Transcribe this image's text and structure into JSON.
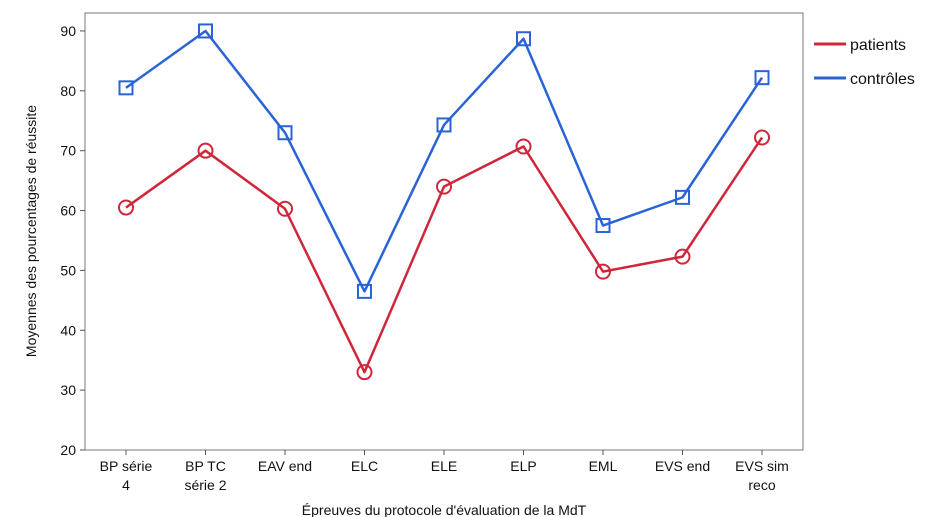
{
  "chart_data": {
    "type": "line",
    "categories": [
      [
        "BP série",
        "4"
      ],
      [
        "BP TC",
        "série 2"
      ],
      [
        "EAV end"
      ],
      [
        "ELC"
      ],
      [
        "ELE"
      ],
      [
        "ELP"
      ],
      [
        "EML"
      ],
      [
        "EVS end"
      ],
      [
        "EVS sim",
        "reco"
      ]
    ],
    "series": [
      {
        "name": "patients",
        "color": "#d0263a",
        "marker": "circle",
        "values": [
          60.5,
          70.0,
          60.3,
          33.0,
          64.0,
          70.7,
          49.8,
          52.3,
          72.2
        ]
      },
      {
        "name": "contrôles",
        "color": "#2a63d6",
        "marker": "square",
        "values": [
          80.5,
          90.0,
          73.0,
          46.5,
          74.3,
          88.7,
          57.5,
          62.2,
          82.2
        ]
      }
    ],
    "xlabel": "Épreuves du protocole d'évaluation de la MdT",
    "ylabel": "Moyennes des pourcentages de réussite",
    "ylim": [
      20,
      93
    ],
    "yticks": [
      20,
      30,
      40,
      50,
      60,
      70,
      80,
      90
    ],
    "grid": false,
    "legend_position": "right"
  }
}
